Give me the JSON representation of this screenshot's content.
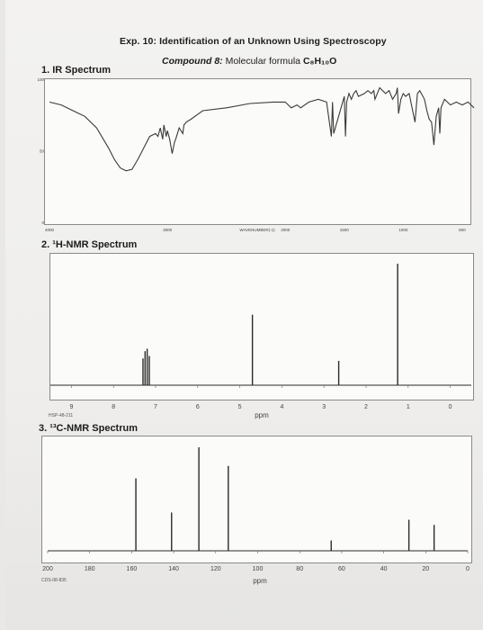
{
  "document": {
    "title": "Exp. 10: Identification of an Unknown Using Spectroscopy",
    "subtitle_lead": "Compound 8:",
    "subtitle_text": "Molecular formula",
    "formula": "C₈H₁₀O"
  },
  "ir": {
    "label": "1. IR Spectrum",
    "y_ticks": [
      "100",
      "50",
      "0"
    ],
    "x_ticks": [
      "4000",
      "3000",
      "2000",
      "1500",
      "1000",
      "500"
    ],
    "axis_label": "WAVENUMBER(-1)"
  },
  "hnmr": {
    "label": "2. ¹H-NMR Spectrum",
    "x_ticks": [
      "9",
      "8",
      "7",
      "6",
      "5",
      "4",
      "3",
      "2",
      "1",
      "0"
    ],
    "axis_label": "ppm",
    "code": "HSP-48-211"
  },
  "cnmr": {
    "label": "3. ¹³C-NMR Spectrum",
    "x_ticks": [
      "200",
      "180",
      "160",
      "140",
      "120",
      "100",
      "80",
      "60",
      "40",
      "20",
      "0"
    ],
    "axis_label": "ppm",
    "code": "CDS-08-835"
  },
  "chart_data": [
    {
      "type": "line",
      "title": "1. IR Spectrum",
      "x_unit": "cm-1",
      "xlim": [
        4000,
        400
      ],
      "ylim": [
        0,
        100
      ],
      "x": [
        4000,
        3900,
        3800,
        3700,
        3600,
        3500,
        3450,
        3400,
        3350,
        3300,
        3250,
        3200,
        3150,
        3100,
        3080,
        3060,
        3040,
        3030,
        3010,
        3000,
        2980,
        2960,
        2940,
        2930,
        2900,
        2870,
        2860,
        2840,
        2800,
        2700,
        2500,
        2300,
        2100,
        2000,
        1950,
        1900,
        1870,
        1800,
        1720,
        1650,
        1610,
        1600,
        1590,
        1500,
        1490,
        1480,
        1460,
        1440,
        1420,
        1400,
        1380,
        1330,
        1300,
        1270,
        1250,
        1240,
        1220,
        1200,
        1150,
        1120,
        1090,
        1060,
        1050,
        1040,
        1020,
        1000,
        980,
        950,
        900,
        880,
        860,
        820,
        800,
        780,
        760,
        740,
        720,
        700,
        690,
        680,
        650,
        600,
        550,
        500,
        450,
        400
      ],
      "y": [
        84,
        82,
        78,
        74,
        66,
        52,
        44,
        38,
        36,
        37,
        44,
        52,
        60,
        62,
        60,
        66,
        58,
        68,
        60,
        64,
        58,
        48,
        56,
        58,
        66,
        62,
        68,
        70,
        72,
        78,
        80,
        83,
        84,
        84,
        80,
        82,
        80,
        84,
        86,
        84,
        60,
        84,
        62,
        88,
        60,
        84,
        90,
        86,
        90,
        92,
        88,
        90,
        92,
        90,
        92,
        86,
        90,
        94,
        90,
        92,
        86,
        90,
        94,
        76,
        86,
        90,
        88,
        90,
        70,
        90,
        92,
        86,
        78,
        72,
        70,
        54,
        74,
        80,
        62,
        80,
        86,
        82,
        84,
        82,
        84,
        80
      ]
    },
    {
      "type": "bar",
      "title": "2. ¹H-NMR Spectrum",
      "x_unit": "ppm",
      "xlim": [
        9.5,
        -0.5
      ],
      "x": [
        7.3,
        7.25,
        7.2,
        7.15,
        4.7,
        2.65,
        1.25
      ],
      "values": [
        22,
        28,
        30,
        24,
        58,
        20,
        100
      ]
    },
    {
      "type": "bar",
      "title": "3. ¹³C-NMR Spectrum",
      "x_unit": "ppm",
      "xlim": [
        200,
        0
      ],
      "x": [
        158,
        141,
        128,
        114,
        65,
        28,
        16
      ],
      "values": [
        70,
        37,
        100,
        82,
        10,
        30,
        25
      ]
    }
  ]
}
